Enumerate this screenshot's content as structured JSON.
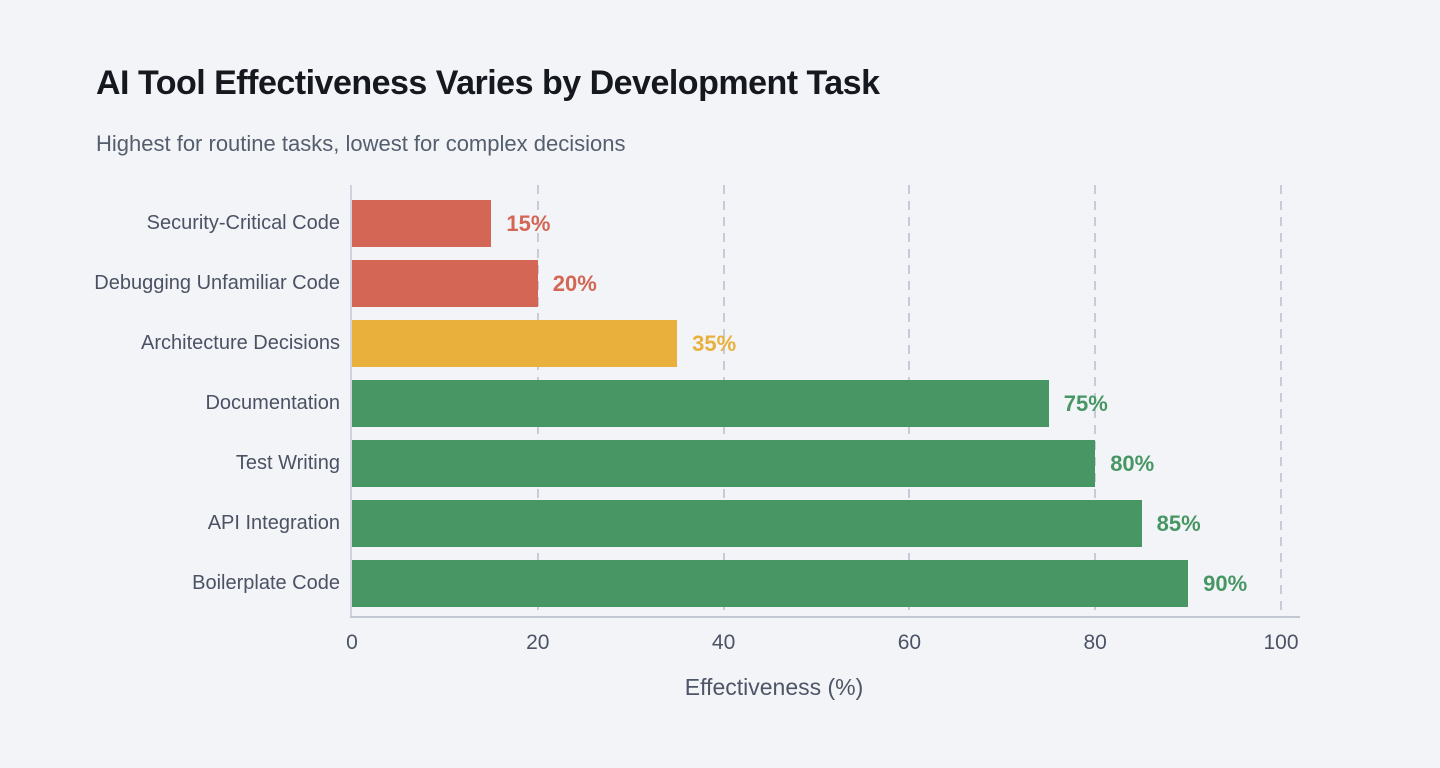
{
  "header": {
    "title": "AI Tool Effectiveness Varies by Development Task",
    "subtitle": "Highest for routine tasks, lowest for complex decisions"
  },
  "chart_data": {
    "type": "bar",
    "orientation": "horizontal",
    "title": "AI Tool Effectiveness Varies by Development Task",
    "subtitle": "Highest for routine tasks, lowest for complex decisions",
    "xlabel": "Effectiveness (%)",
    "xlim": [
      0,
      100
    ],
    "xticks": [
      0,
      20,
      40,
      60,
      80,
      100
    ],
    "grid": "vertical-dashed",
    "legend": "none",
    "background": "#f2f4f7",
    "categories": [
      "Security-Critical Code",
      "Debugging Unfamiliar Code",
      "Architecture Decisions",
      "Documentation",
      "Test Writing",
      "API Integration",
      "Boilerplate Code"
    ],
    "values": [
      15,
      20,
      35,
      75,
      80,
      85,
      90
    ],
    "colors": {
      "low": "#d36654",
      "medium": "#e9b13c",
      "high": "#479663"
    },
    "rows": [
      {
        "label": "Security-Critical Code",
        "value": 15,
        "display": "15%",
        "color": "#d36654"
      },
      {
        "label": "Debugging Unfamiliar Code",
        "value": 20,
        "display": "20%",
        "color": "#d36654"
      },
      {
        "label": "Architecture Decisions",
        "value": 35,
        "display": "35%",
        "color": "#e9b13c"
      },
      {
        "label": "Documentation",
        "value": 75,
        "display": "75%",
        "color": "#479663"
      },
      {
        "label": "Test Writing",
        "value": 80,
        "display": "80%",
        "color": "#479663"
      },
      {
        "label": "API Integration",
        "value": 85,
        "display": "85%",
        "color": "#479663"
      },
      {
        "label": "Boilerplate Code",
        "value": 90,
        "display": "90%",
        "color": "#479663"
      }
    ]
  }
}
